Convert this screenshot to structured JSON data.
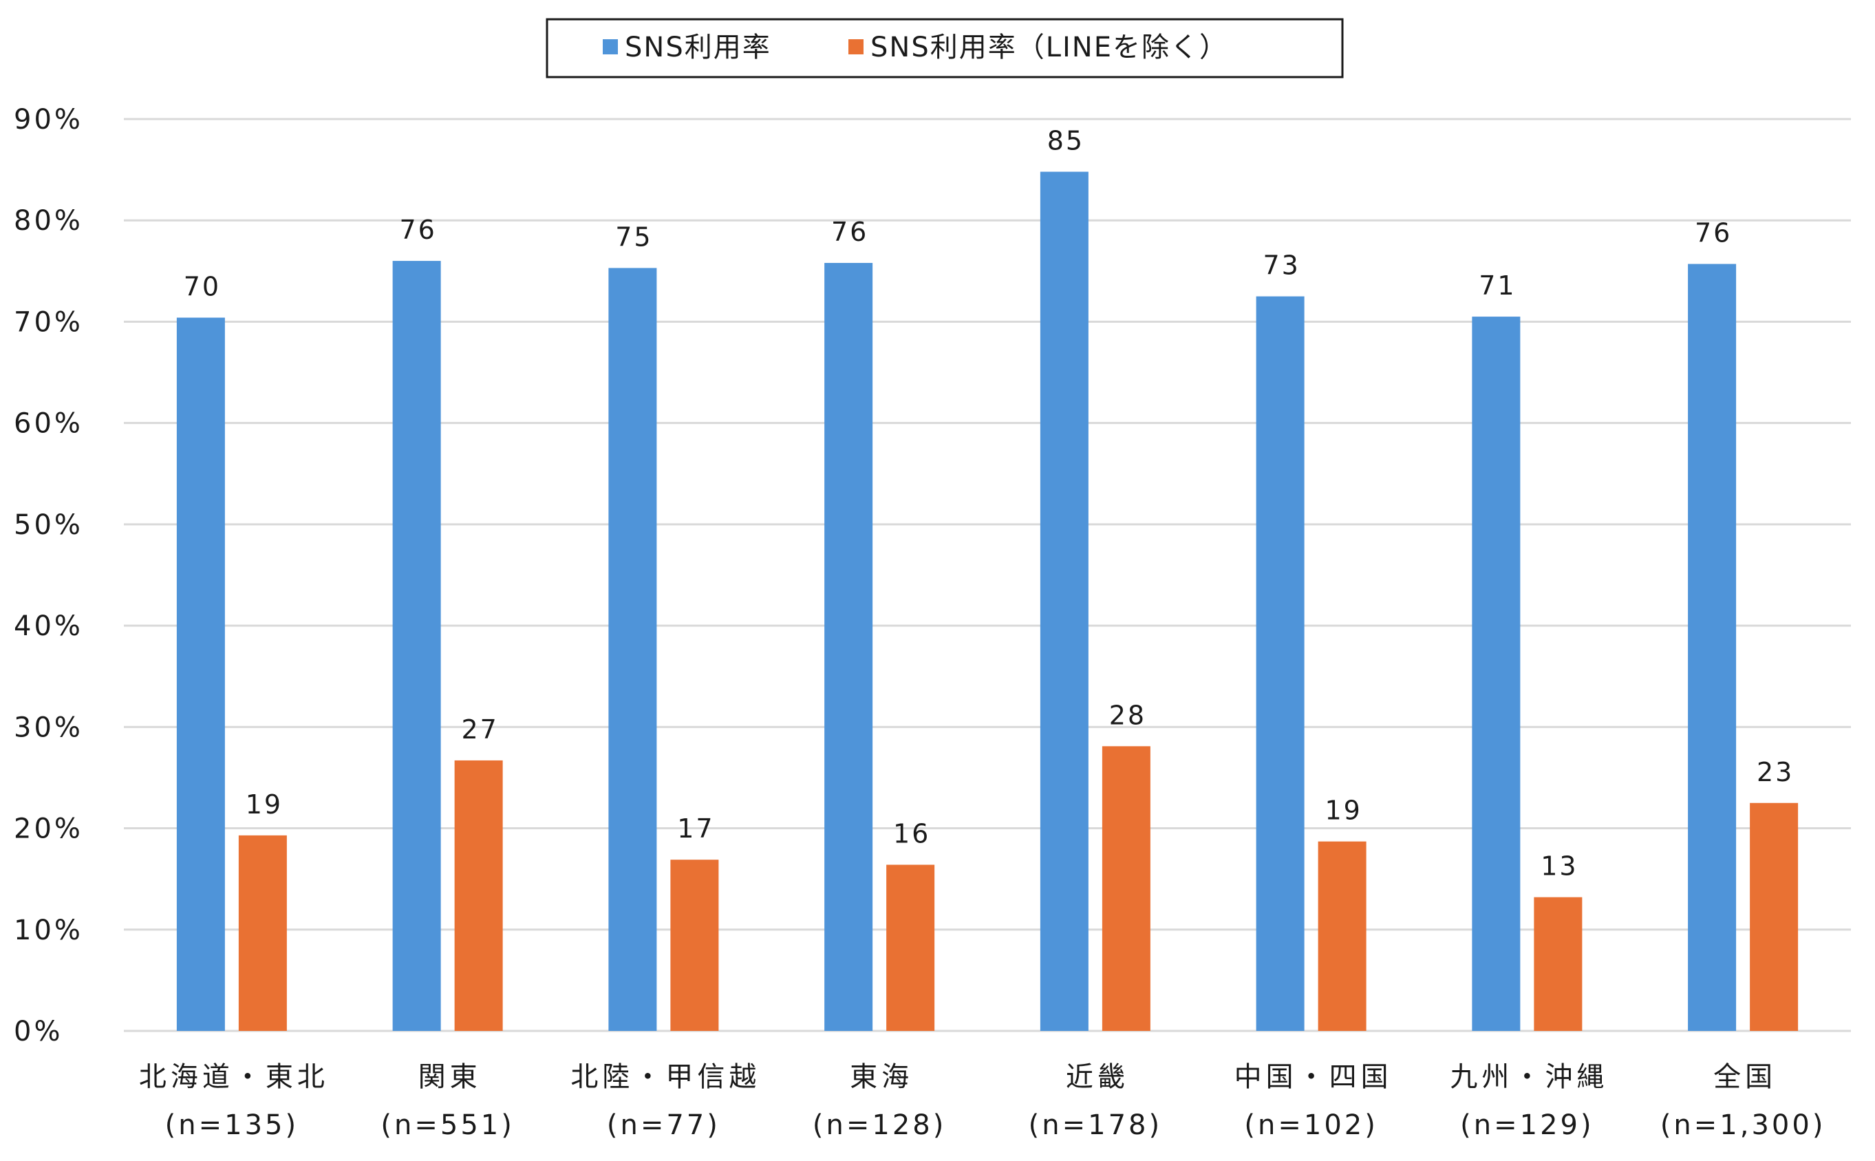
{
  "chart_data": {
    "type": "bar",
    "title": "",
    "xlabel": "",
    "ylabel": "",
    "ylim": [
      0,
      90
    ],
    "y_ticks": [
      "90%",
      "80%",
      "70%",
      "60%",
      "50%",
      "40%",
      "30%",
      "20%",
      "10%",
      "0%"
    ],
    "grid": true,
    "legend_position": "top-center",
    "categories": [
      {
        "name": "北海道・東北",
        "n": "(n=135)"
      },
      {
        "name": "関東",
        "n": "(n=551)"
      },
      {
        "name": "北陸・甲信越",
        "n": "(n=77)"
      },
      {
        "name": "東海",
        "n": "(n=128)"
      },
      {
        "name": "近畿",
        "n": "(n=178)"
      },
      {
        "name": "中国・四国",
        "n": "(n=102)"
      },
      {
        "name": "九州・沖縄",
        "n": "(n=129)"
      },
      {
        "name": "全国",
        "n": "(n=1,300)"
      }
    ],
    "series": [
      {
        "name": "SNS利用率",
        "color": "#4f94d9",
        "values": [
          70.4,
          76.0,
          75.3,
          75.8,
          84.8,
          72.5,
          70.5,
          75.7
        ],
        "labels": [
          "70",
          "76",
          "75",
          "76",
          "85",
          "73",
          "71",
          "76"
        ]
      },
      {
        "name": "SNS利用率（LINEを除く）",
        "color": "#e97133",
        "values": [
          19.3,
          26.7,
          16.9,
          16.4,
          28.1,
          18.7,
          13.2,
          22.5
        ],
        "labels": [
          "19",
          "27",
          "17",
          "16",
          "28",
          "19",
          "13",
          "23"
        ]
      }
    ]
  }
}
